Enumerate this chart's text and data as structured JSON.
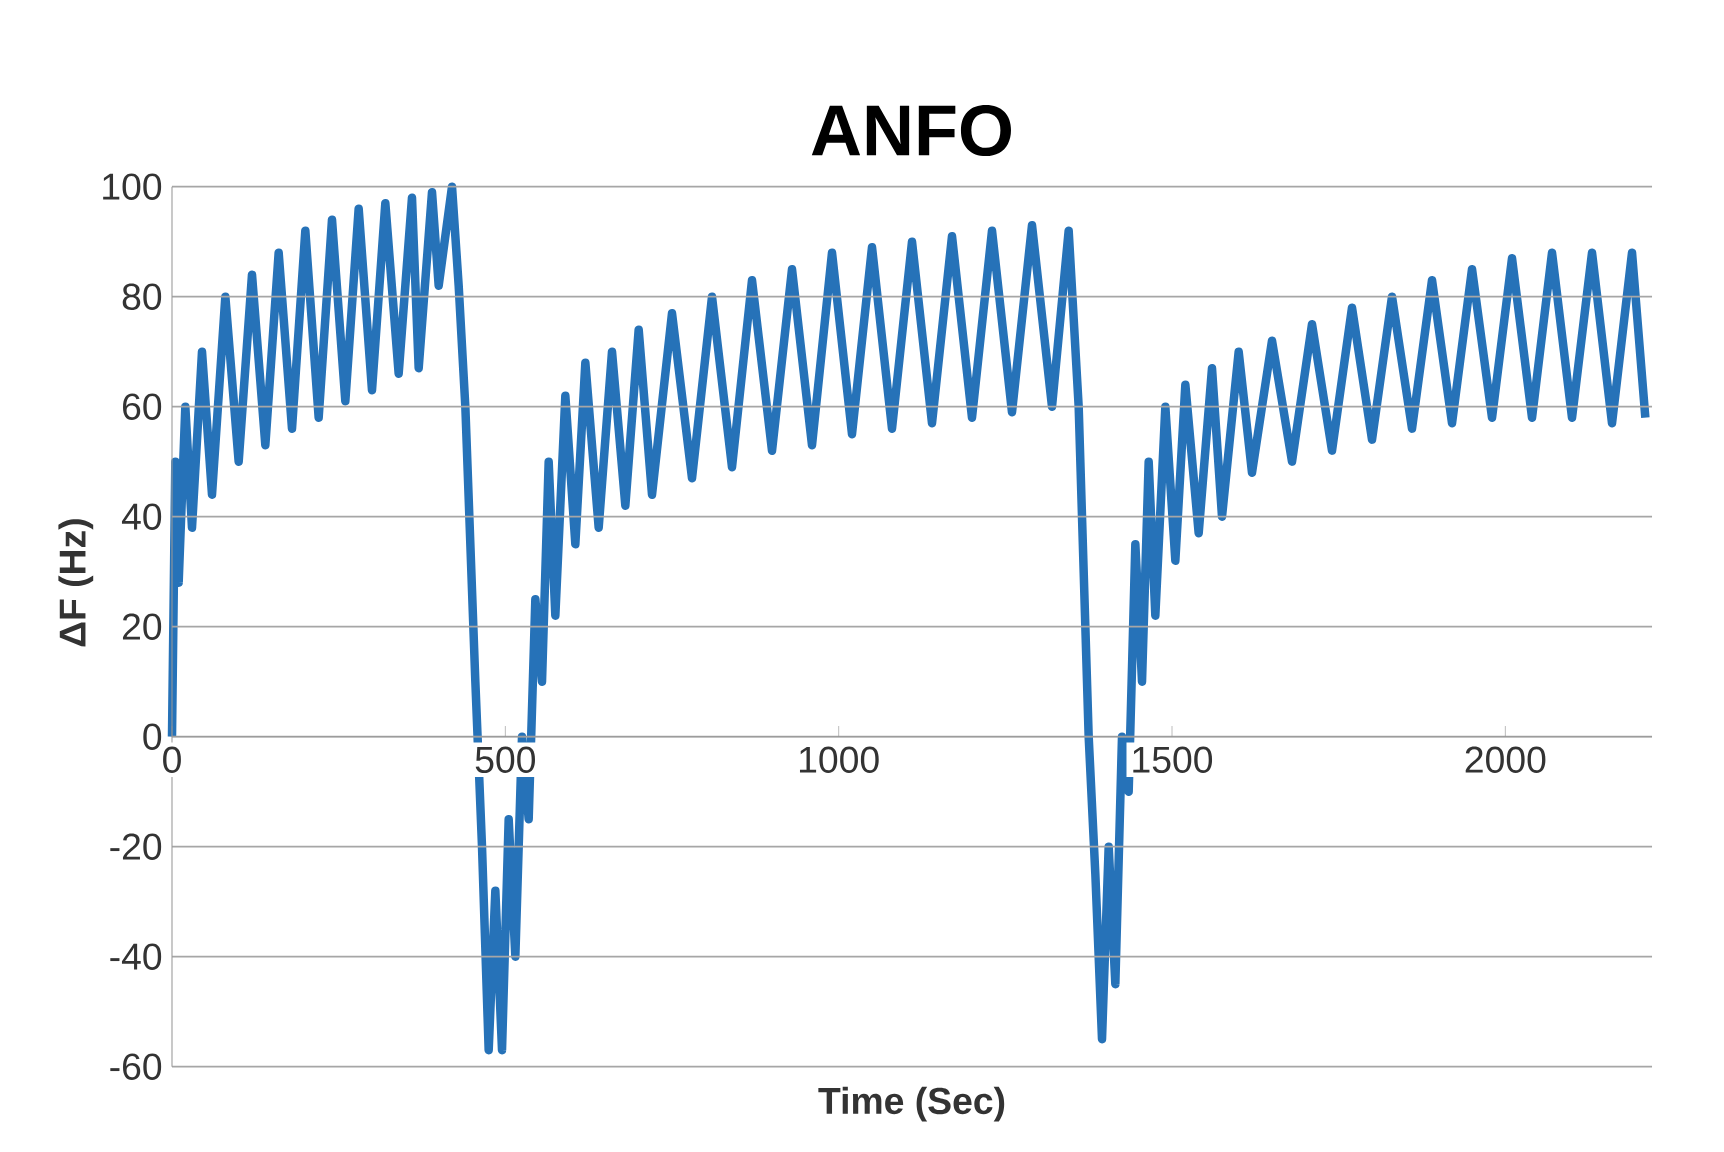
{
  "chart_data": {
    "type": "line",
    "title": "ANFO",
    "xlabel": "Time (Sec)",
    "ylabel": "ΔF (Hz)",
    "xlim": [
      0,
      2220
    ],
    "ylim": [
      -60,
      100
    ],
    "xticks": [
      0,
      500,
      1000,
      1500,
      2000
    ],
    "yticks": [
      -60,
      -40,
      -20,
      0,
      20,
      40,
      60,
      80,
      100
    ],
    "grid": "y",
    "marker": "none",
    "line_style": "solid",
    "series": [
      {
        "color": "#2672b8",
        "x": [
          0,
          5,
          10,
          20,
          30,
          45,
          60,
          80,
          100,
          120,
          140,
          160,
          180,
          200,
          220,
          240,
          260,
          280,
          300,
          320,
          340,
          360,
          370,
          390,
          400,
          420,
          430,
          440,
          455,
          465,
          475,
          485,
          495,
          505,
          515,
          525,
          535,
          545,
          555,
          565,
          575,
          590,
          605,
          620,
          640,
          660,
          680,
          700,
          720,
          750,
          780,
          810,
          840,
          870,
          900,
          930,
          960,
          990,
          1020,
          1050,
          1080,
          1110,
          1140,
          1170,
          1200,
          1230,
          1260,
          1290,
          1320,
          1345,
          1360,
          1375,
          1385,
          1395,
          1405,
          1415,
          1425,
          1435,
          1445,
          1455,
          1465,
          1475,
          1490,
          1505,
          1520,
          1540,
          1560,
          1575,
          1600,
          1620,
          1650,
          1680,
          1710,
          1740,
          1770,
          1800,
          1830,
          1860,
          1890,
          1920,
          1950,
          1980,
          2010,
          2040,
          2070,
          2100,
          2130,
          2160,
          2190,
          2210
        ],
        "values": [
          0,
          50,
          28,
          60,
          38,
          70,
          44,
          80,
          50,
          84,
          53,
          88,
          56,
          92,
          58,
          94,
          61,
          96,
          63,
          97,
          66,
          98,
          67,
          99,
          82,
          100,
          82,
          60,
          10,
          -20,
          -57,
          -28,
          -57,
          -15,
          -40,
          0,
          -15,
          25,
          10,
          50,
          22,
          62,
          35,
          68,
          38,
          70,
          42,
          74,
          44,
          77,
          47,
          80,
          49,
          83,
          52,
          85,
          53,
          88,
          55,
          89,
          56,
          90,
          57,
          91,
          58,
          92,
          59,
          93,
          60,
          92,
          60,
          0,
          -25,
          -55,
          -20,
          -45,
          0,
          -10,
          35,
          10,
          50,
          22,
          60,
          32,
          64,
          37,
          67,
          40,
          70,
          48,
          72,
          50,
          75,
          52,
          78,
          54,
          80,
          56,
          83,
          57,
          85,
          58,
          87,
          58,
          88,
          58,
          88,
          57,
          88,
          58
        ]
      }
    ]
  }
}
